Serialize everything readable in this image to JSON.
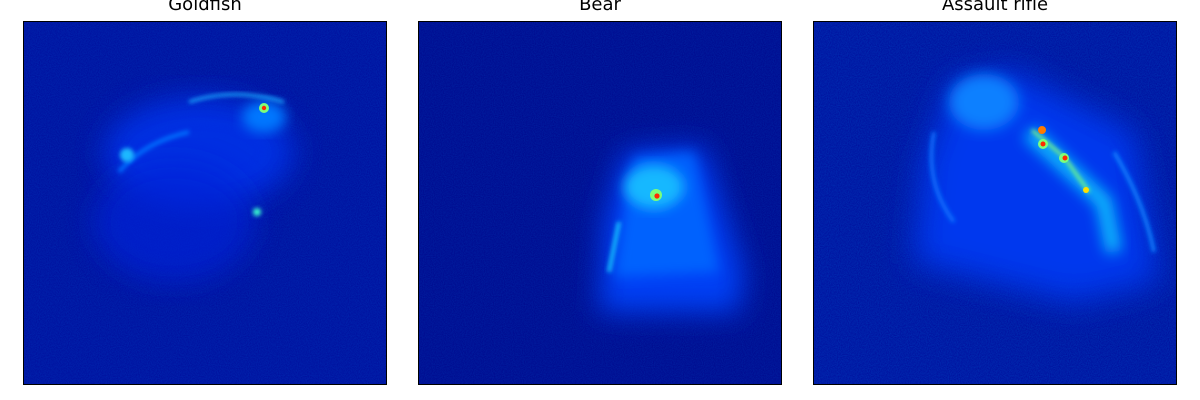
{
  "figure": {
    "panels": [
      {
        "title": "Goldfish"
      },
      {
        "title": "Bear"
      },
      {
        "title": "Assault rifle"
      }
    ]
  },
  "colors": {
    "background": "#000a8f",
    "low": "#0000c8",
    "mid": "#0050ff",
    "high": "#00d4ff",
    "peak_ring": "#7dff7a",
    "peak_core": "#ff2a00"
  }
}
